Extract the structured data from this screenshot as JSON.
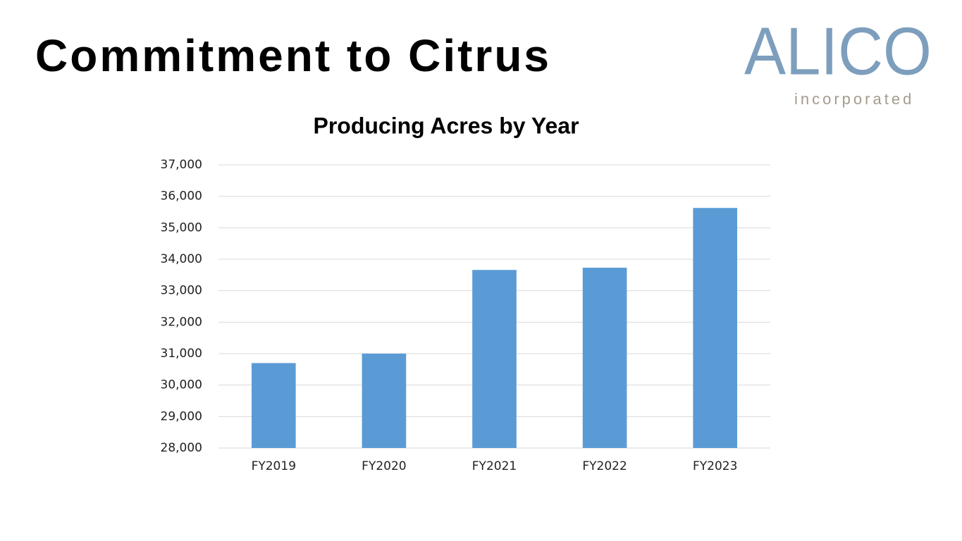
{
  "title": "Commitment to Citrus",
  "logo": {
    "name": "ALICO",
    "tagline": "incorporated"
  },
  "chart_data": {
    "type": "bar",
    "title": "Producing Acres by Year",
    "categories": [
      "FY2019",
      "FY2020",
      "FY2021",
      "FY2022",
      "FY2023"
    ],
    "values": [
      30700,
      31000,
      33660,
      33730,
      35630
    ],
    "color": "#5b9bd5",
    "ylim": [
      28000,
      37000
    ],
    "yticks": [
      {
        "value": 28000,
        "label": "28,000"
      },
      {
        "value": 29000,
        "label": "29,000"
      },
      {
        "value": 30000,
        "label": "30,000"
      },
      {
        "value": 31000,
        "label": "31,000"
      },
      {
        "value": 32000,
        "label": "32,000"
      },
      {
        "value": 33000,
        "label": "33,000"
      },
      {
        "value": 34000,
        "label": "34,000"
      },
      {
        "value": 35000,
        "label": "35,000"
      },
      {
        "value": 36000,
        "label": "36,000"
      },
      {
        "value": 37000,
        "label": "37,000"
      }
    ],
    "grid": true
  }
}
